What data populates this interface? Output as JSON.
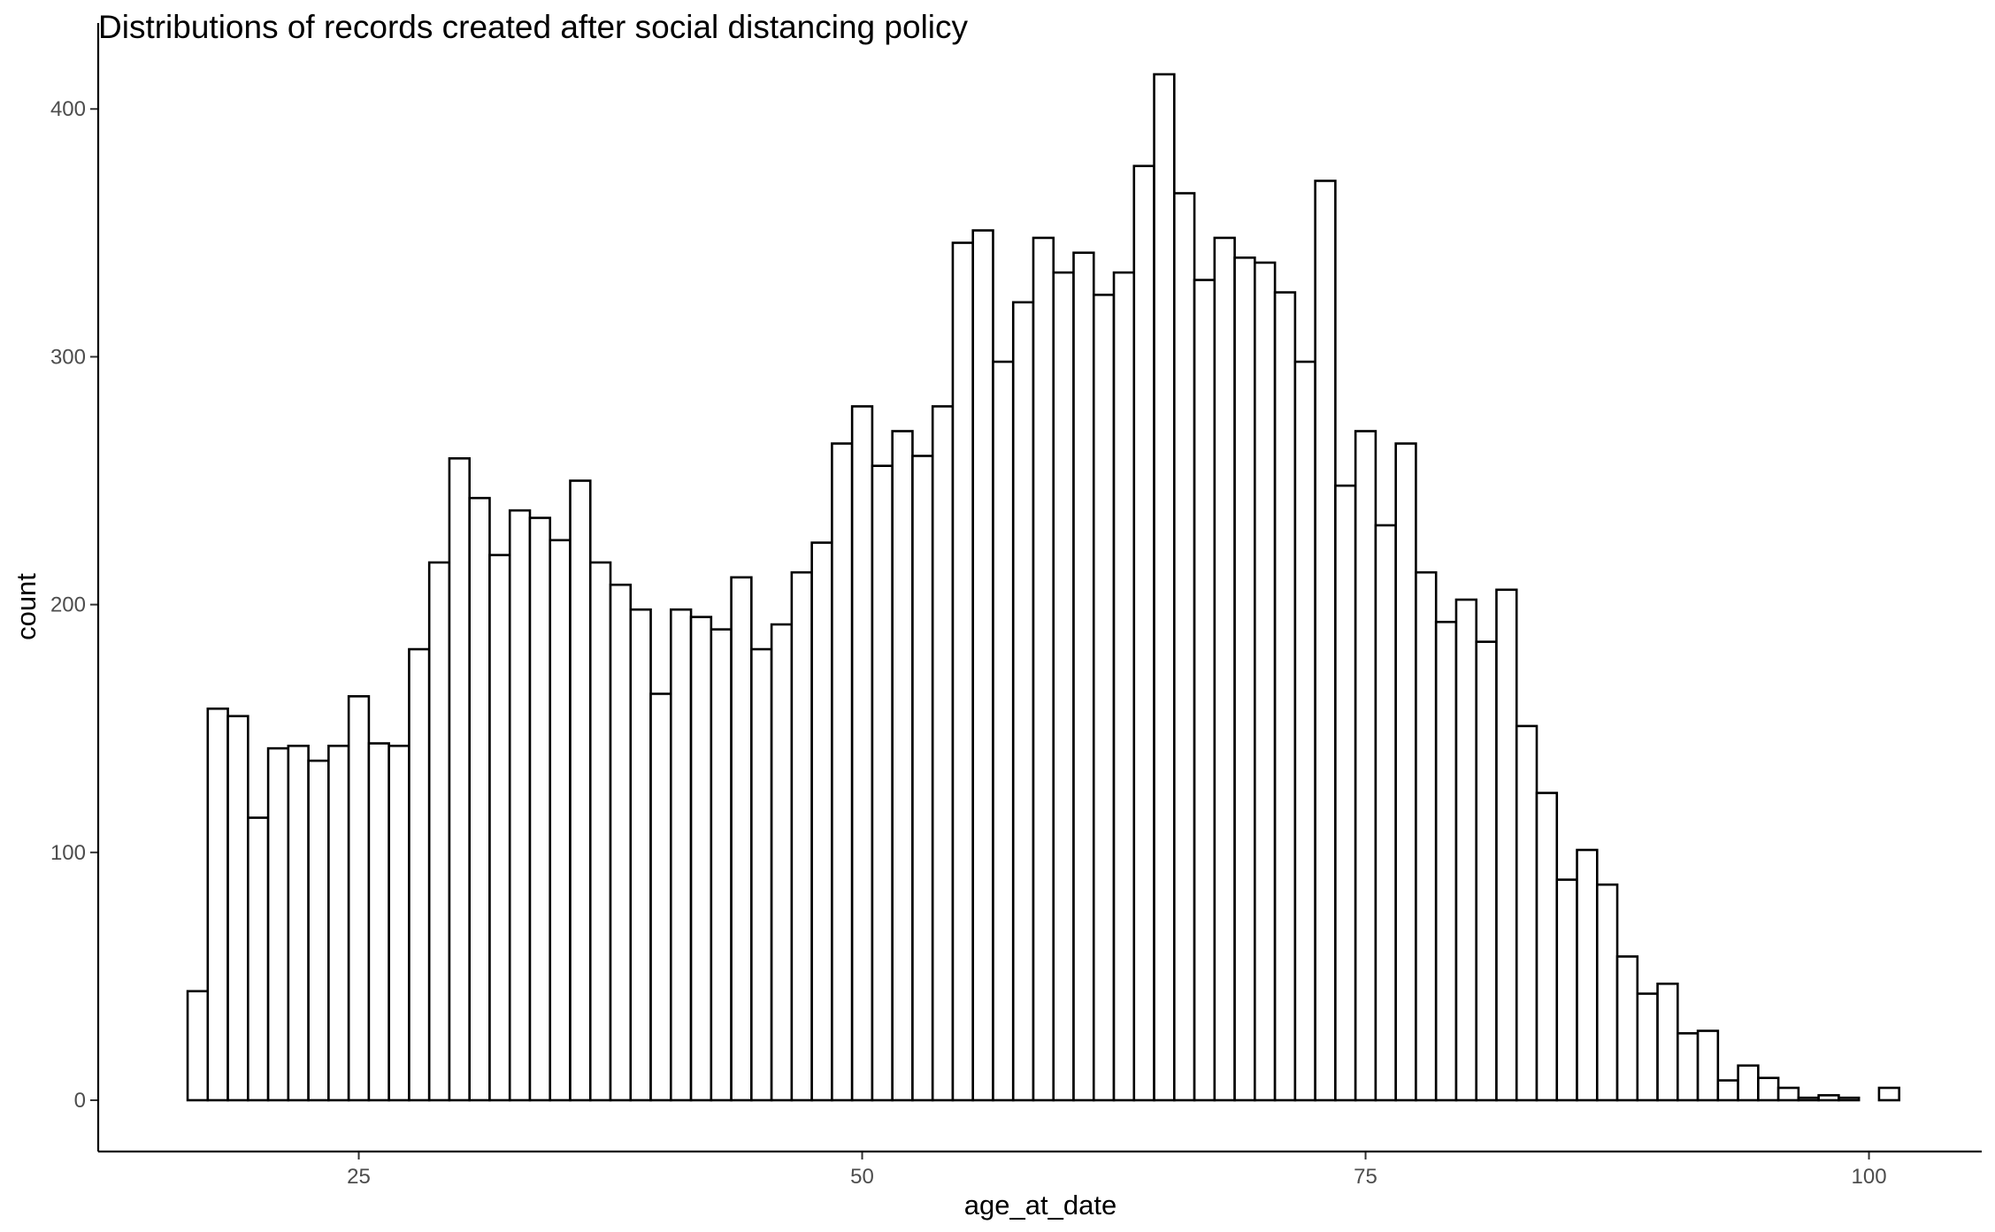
{
  "chart_data": {
    "type": "bar",
    "title": "Distributions of records created after social distancing policy",
    "xlabel": "age_at_date",
    "ylabel": "count",
    "x_ticks": [
      25,
      50,
      75,
      100
    ],
    "y_ticks": [
      0,
      100,
      200,
      300,
      400
    ],
    "xlim": [
      12.06,
      105.6
    ],
    "ylim": [
      -20.7,
      434.7
    ],
    "bin_start": 16.5,
    "bin_width": 1,
    "values": [
      44,
      158,
      155,
      114,
      142,
      143,
      137,
      143,
      163,
      144,
      143,
      182,
      217,
      259,
      243,
      220,
      238,
      235,
      226,
      250,
      217,
      208,
      198,
      164,
      198,
      195,
      190,
      211,
      182,
      192,
      213,
      225,
      265,
      280,
      256,
      270,
      260,
      280,
      346,
      351,
      298,
      322,
      348,
      334,
      342,
      325,
      334,
      377,
      414,
      366,
      331,
      348,
      340,
      338,
      326,
      298,
      371,
      248,
      270,
      232,
      265,
      213,
      193,
      202,
      185,
      206,
      151,
      124,
      89,
      101,
      87,
      58,
      43,
      47,
      27,
      28,
      8,
      14,
      9,
      5,
      1,
      2,
      1,
      0,
      5
    ],
    "grid": false,
    "legend": "none",
    "colors": {
      "bar_fill": "#ffffff",
      "bar_stroke": "#000000",
      "axis": "#000000",
      "tick_label": "#4d4d4d"
    }
  }
}
